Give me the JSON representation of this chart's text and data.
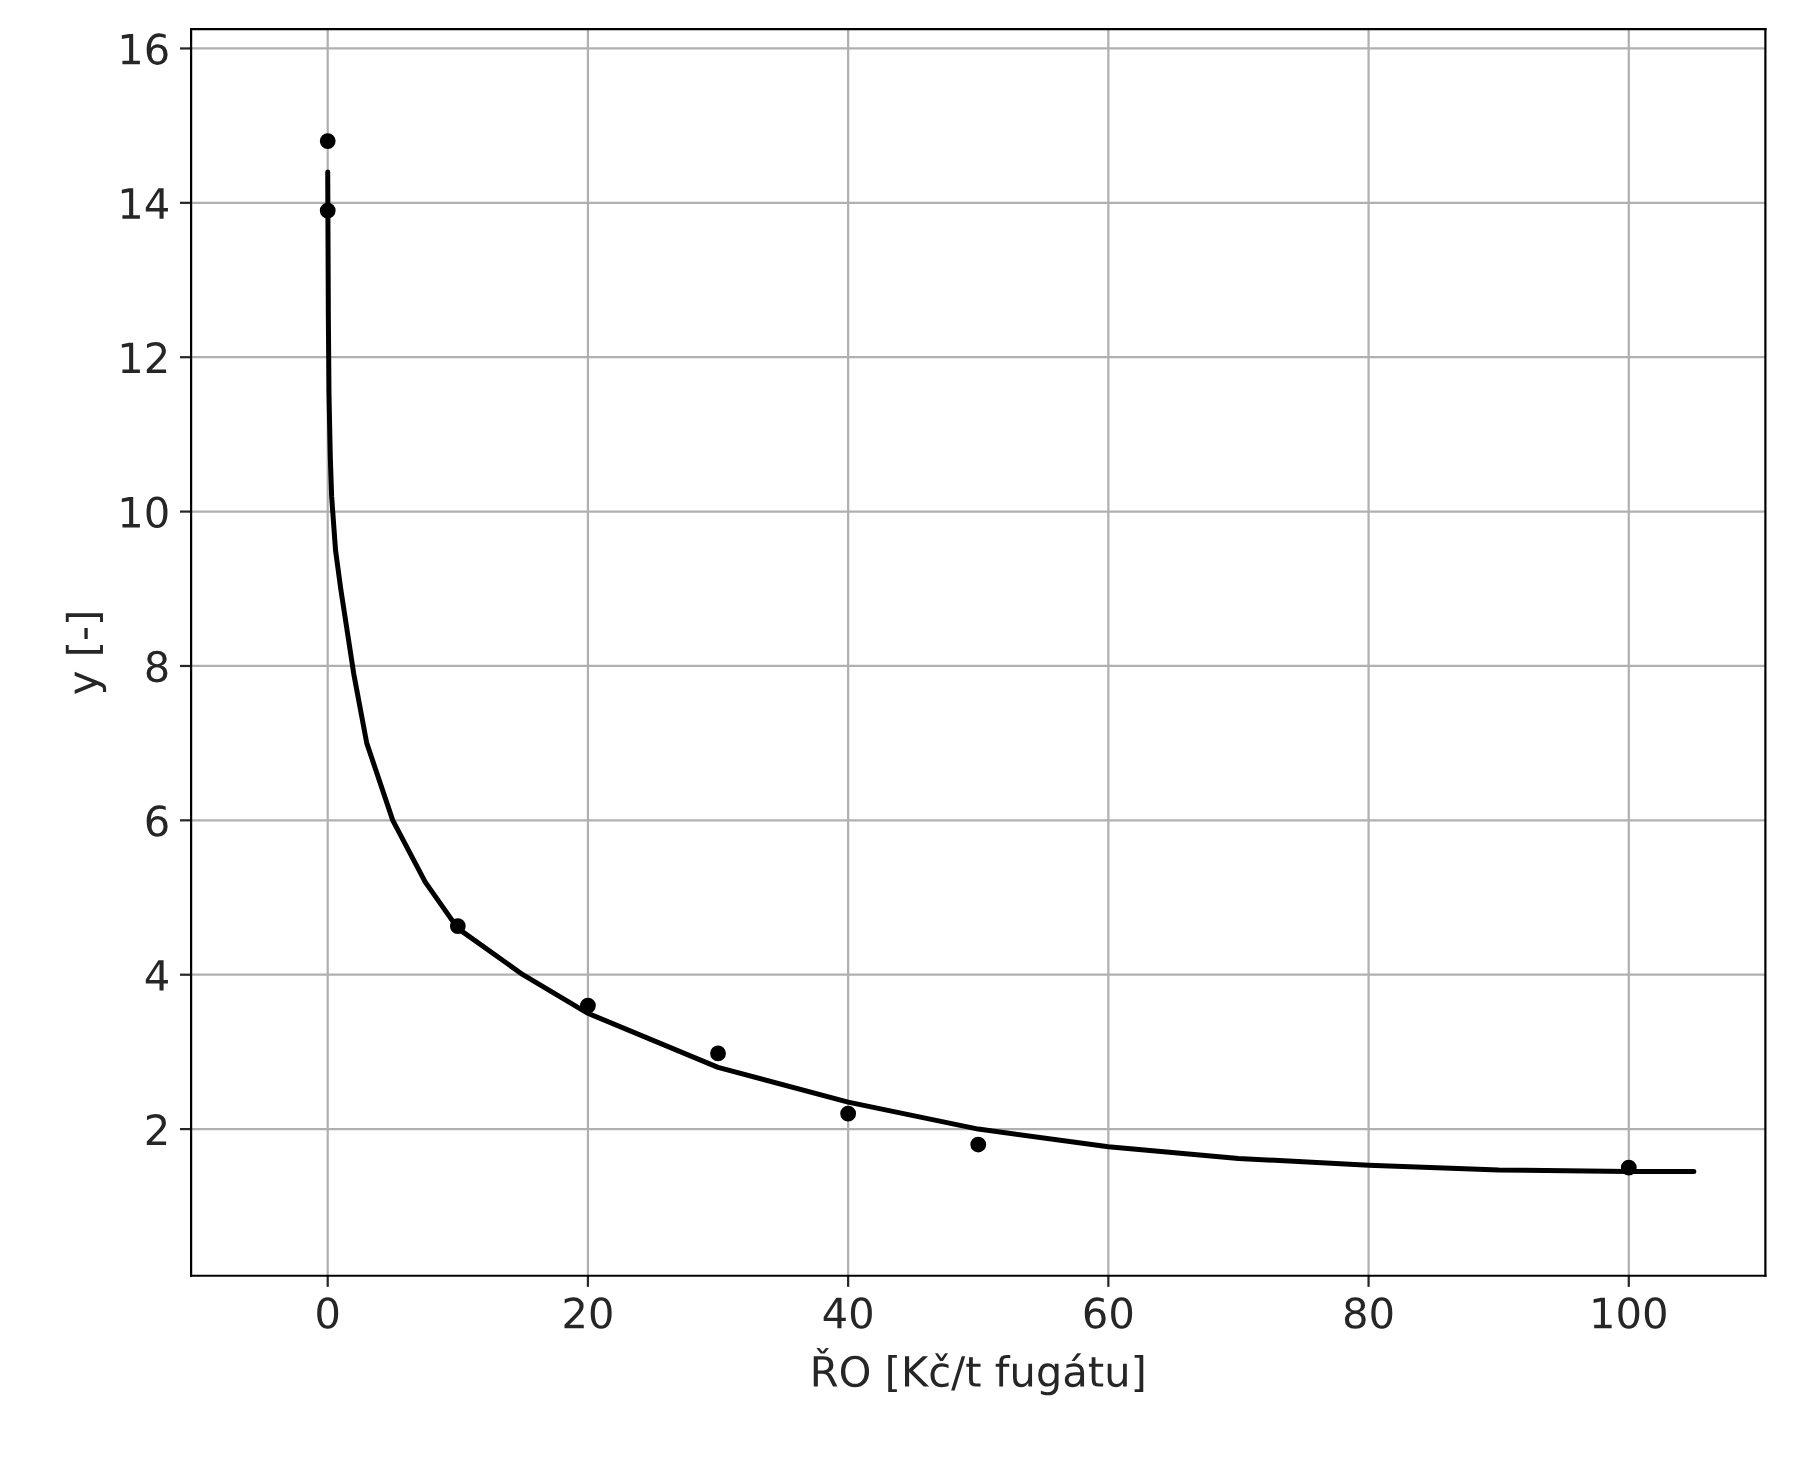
{
  "chart_data": {
    "type": "scatter",
    "xlabel": "ŘO [Kč/t fugátu]",
    "ylabel": "y [-]",
    "xlim": [
      -10.5,
      110.5
    ],
    "ylim": [
      0.1,
      16.25
    ],
    "xticks": [
      0,
      20,
      40,
      60,
      80,
      100
    ],
    "yticks": [
      2,
      4,
      6,
      8,
      10,
      12,
      14,
      16
    ],
    "grid": true,
    "series": [
      {
        "color": "#000000",
        "marker": "circle",
        "x": [
          0,
          0,
          10,
          20,
          30,
          40,
          50,
          100
        ],
        "values": [
          14.8,
          13.9,
          4.63,
          3.6,
          2.98,
          2.2,
          1.8,
          1.5
        ]
      },
      {
        "type": "line",
        "color": "#000000",
        "marker": "none",
        "line_style": "solid",
        "x": [
          0,
          0.05,
          0.1,
          0.2,
          0.3,
          0.6,
          1,
          2,
          3,
          5,
          7.5,
          10,
          15,
          20,
          30,
          40,
          50,
          60,
          70,
          80,
          90,
          100,
          105
        ],
        "values": [
          14.4,
          12.5,
          11.5,
          10.7,
          10.2,
          9.5,
          9.0,
          7.9,
          7.0,
          6.0,
          5.2,
          4.6,
          4.0,
          3.5,
          2.8,
          2.35,
          2.0,
          1.77,
          1.62,
          1.53,
          1.47,
          1.45,
          1.45
        ]
      }
    ]
  }
}
